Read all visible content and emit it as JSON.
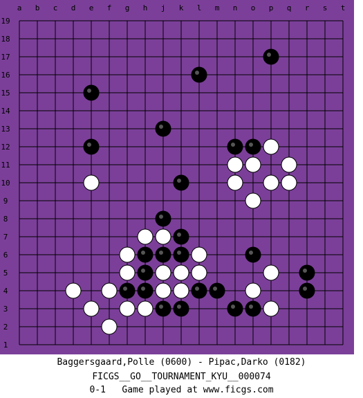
{
  "board": {
    "size": 19,
    "colors": {
      "background": "#7b3f99",
      "lines": "#000000",
      "black_stone": "#000000",
      "white_stone": "#ffffff"
    },
    "column_labels": [
      "a",
      "b",
      "c",
      "d",
      "e",
      "f",
      "g",
      "h",
      "j",
      "k",
      "l",
      "m",
      "n",
      "o",
      "p",
      "q",
      "r",
      "s",
      "t"
    ],
    "row_labels": [
      "19",
      "18",
      "17",
      "16",
      "15",
      "14",
      "13",
      "12",
      "11",
      "10",
      "9",
      "8",
      "7",
      "6",
      "5",
      "4",
      "3",
      "2",
      "1"
    ],
    "black_stones": [
      "p17",
      "l16",
      "e15",
      "j13",
      "e12",
      "n12",
      "o12",
      "k10",
      "j8",
      "k7",
      "h6",
      "j6",
      "k6",
      "o6",
      "h5",
      "r5",
      "g4",
      "h4",
      "l4",
      "m4",
      "r4",
      "j3",
      "k3",
      "n3",
      "o3"
    ],
    "white_stones": [
      "p12",
      "n11",
      "o11",
      "q11",
      "e10",
      "n10",
      "p10",
      "q10",
      "o9",
      "h7",
      "j7",
      "g6",
      "l6",
      "g5",
      "j5",
      "k5",
      "l5",
      "p5",
      "d4",
      "f4",
      "j4",
      "k4",
      "o4",
      "e3",
      "g3",
      "h3",
      "p3",
      "f2"
    ]
  },
  "caption": {
    "players": "Baggersgaard,Polle (0600) - Pipac,Darko (0182)",
    "tournament": "FICGS__GO__TOURNAMENT_KYU__000074",
    "result": "0-1   Game played at www.ficgs.com"
  }
}
